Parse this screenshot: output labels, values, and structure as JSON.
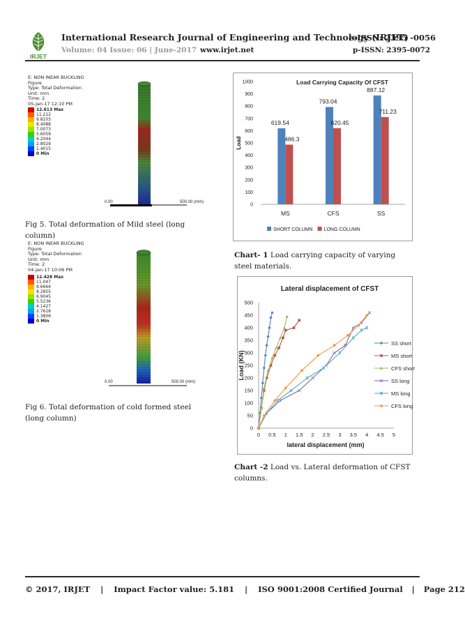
{
  "header": {
    "logo_text": "IRJET",
    "journal_title": "International Research Journal of Engineering and Technology (IRJET)",
    "eissn": "e-ISSN: 2395 -0056",
    "volume": "Volume: 04 Issue: 06 | June-2017",
    "website": "www.irjet.net",
    "pissn": "p-ISSN: 2395-0072"
  },
  "fig5": {
    "legend_title": "E: NON INEAR BUCKLING\nFigure\nType: Total Deformation\nUnit: mm\nTime: 2\n05-Jan-17 12:10 PM",
    "legend_max": "12.613 Max",
    "legend_values": [
      "11.212",
      "9.8103",
      "8.4088",
      "7.0073",
      "5.6059",
      "4.2044",
      "2.8029",
      "1.4015"
    ],
    "legend_min": "0 Min",
    "scale_left": "0.00",
    "scale_right": "500.00 (mm)",
    "caption": "Fig 5. Total deformation of Mild steel (long column)"
  },
  "fig6": {
    "legend_title": "E: NON INEAR BUCKLING\nFigure\nType: Total Deformation\nUnit: mm\nTime: 2\n04-Jan-17 10:06 PM",
    "legend_max": "12.428 Max",
    "legend_values": [
      "11.047",
      "9.6664",
      "8.2855",
      "6.9045",
      "5.5236",
      "4.1427",
      "2.7618",
      "1.3809"
    ],
    "legend_min": "0 Min",
    "scale_left": "0.00",
    "scale_right": "500.00 (mm)",
    "caption": "Fig 6. Total deformation of cold formed steel (long column)"
  },
  "legend_colors": [
    "#d40000",
    "#ff5a00",
    "#ffb300",
    "#e8e800",
    "#9ee000",
    "#38d000",
    "#00d0c0",
    "#00a0ff",
    "#0040ff",
    "#0000c8"
  ],
  "chart1_caption": {
    "label": "Chart- 1",
    "text": "Load carrying capacity of varying steel materials."
  },
  "chart2_caption": {
    "label": "Chart -2",
    "text": "Load vs. Lateral deformation of CFST columns."
  },
  "chart_data": [
    {
      "type": "bar",
      "title": "Load Carrying Capacity Of CFST",
      "ylabel": "Load",
      "xlabel": "",
      "categories": [
        "MS",
        "CFS",
        "SS"
      ],
      "ylim": [
        0,
        1000
      ],
      "yticks": [
        0,
        100,
        200,
        300,
        400,
        500,
        600,
        700,
        800,
        900,
        1000
      ],
      "legend_position": "bottom",
      "series": [
        {
          "name": "SHORT COLUMN",
          "color": "#4f81bd",
          "values": [
            619.54,
            793.04,
            887.12
          ]
        },
        {
          "name": "LONG COLUMN",
          "color": "#c0504d",
          "values": [
            486.3,
            620.45,
            711.23
          ]
        }
      ]
    },
    {
      "type": "line",
      "title": "Lateral displacement of CFST",
      "xlabel": "lateral displacement (mm)",
      "ylabel": "Load (KN)",
      "xlim": [
        0,
        5
      ],
      "ylim": [
        0,
        500
      ],
      "xticks": [
        0,
        0.5,
        1,
        1.5,
        2,
        2.5,
        3,
        3.5,
        4,
        4.5,
        5
      ],
      "yticks": [
        0,
        50,
        100,
        150,
        200,
        250,
        300,
        350,
        400,
        450,
        500
      ],
      "legend_position": "right",
      "series": [
        {
          "name": "SS short",
          "color": "#4f81bd",
          "marker": "diamond",
          "x": [
            0,
            0.05,
            0.1,
            0.15,
            0.2,
            0.25,
            0.3,
            0.35,
            0.4,
            0.45,
            0.5
          ],
          "y": [
            0,
            60,
            120,
            180,
            240,
            290,
            330,
            365,
            400,
            440,
            460
          ]
        },
        {
          "name": "MS short",
          "color": "#c0504d",
          "marker": "square",
          "x": [
            0,
            0.1,
            0.2,
            0.3,
            0.45,
            0.6,
            0.75,
            0.9,
            1.0,
            1.3,
            1.5
          ],
          "y": [
            0,
            80,
            150,
            200,
            250,
            290,
            320,
            360,
            390,
            400,
            430
          ]
        },
        {
          "name": "CFS short",
          "color": "#9bbb59",
          "marker": "triangle",
          "x": [
            0,
            0.1,
            0.2,
            0.35,
            0.5,
            0.65,
            0.8,
            0.95,
            1.05
          ],
          "y": [
            0,
            80,
            160,
            230,
            280,
            320,
            360,
            400,
            445
          ]
        },
        {
          "name": "SS long",
          "color": "#8064a2",
          "marker": "x",
          "x": [
            0,
            0.3,
            0.8,
            1.5,
            2.0,
            2.5,
            2.8,
            3.2,
            3.5,
            3.8,
            4.1
          ],
          "y": [
            0,
            60,
            110,
            150,
            200,
            250,
            300,
            330,
            400,
            420,
            460
          ]
        },
        {
          "name": "MS long",
          "color": "#4bacc6",
          "marker": "star",
          "x": [
            0,
            0.3,
            0.7,
            1.2,
            1.8,
            2.4,
            3.0,
            3.5,
            3.8,
            4.0
          ],
          "y": [
            0,
            60,
            110,
            150,
            200,
            240,
            300,
            360,
            390,
            400
          ]
        },
        {
          "name": "CFS long",
          "color": "#f79646",
          "marker": "circle",
          "x": [
            0,
            0.2,
            0.6,
            1.0,
            1.6,
            2.2,
            2.8,
            3.3,
            3.7,
            4.0
          ],
          "y": [
            0,
            50,
            110,
            160,
            230,
            290,
            330,
            370,
            410,
            450
          ]
        }
      ]
    }
  ],
  "footer": {
    "copyright": "© 2017, IRJET",
    "impact": "Impact Factor value: 5.181",
    "iso": "ISO 9001:2008 Certified Journal",
    "page": "Page 212",
    "sep": "|"
  }
}
